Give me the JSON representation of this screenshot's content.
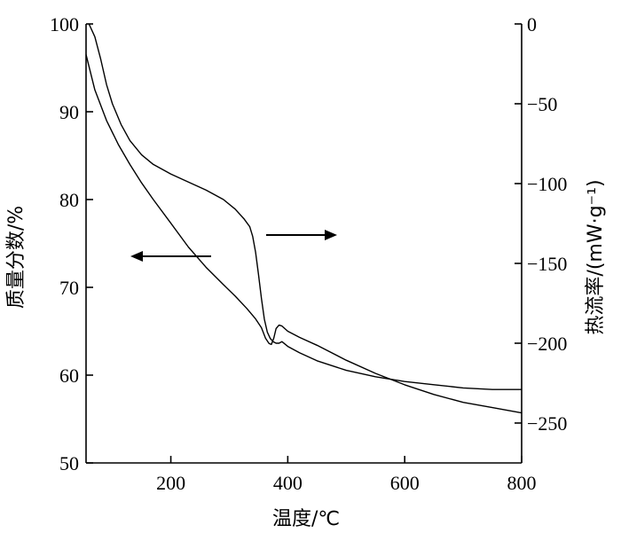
{
  "chart_data": {
    "type": "line",
    "xlabel": "温度/℃",
    "ylabel_left": "质量分数/%",
    "ylabel_right": "热流率/(mW·g⁻¹)",
    "xlim": [
      55,
      800
    ],
    "ylim_left": [
      50,
      100
    ],
    "ylim_right": [
      -275,
      0
    ],
    "x_ticks": [
      200,
      400,
      600,
      800
    ],
    "y_left_ticks": [
      50,
      60,
      70,
      80,
      90,
      100
    ],
    "y_right_ticks": [
      0,
      -50,
      -100,
      -150,
      -200,
      -250
    ],
    "grid": false,
    "legend": "none",
    "series": [
      {
        "axis": "left",
        "x": [
          55,
          70,
          90,
          110,
          130,
          150,
          170,
          200,
          230,
          260,
          290,
          310,
          330,
          345,
          355,
          362,
          368,
          372,
          376,
          380,
          385,
          390,
          400,
          420,
          450,
          500,
          550,
          600,
          650,
          700,
          750,
          800
        ],
        "y": [
          96.5,
          92.5,
          89.0,
          86.3,
          84.0,
          81.9,
          80.0,
          77.3,
          74.6,
          72.3,
          70.3,
          69.0,
          67.6,
          66.4,
          65.4,
          64.2,
          63.6,
          63.5,
          64.2,
          65.3,
          65.7,
          65.6,
          65.0,
          64.3,
          63.4,
          61.7,
          60.2,
          58.9,
          57.8,
          56.9,
          56.3,
          55.7
        ]
      },
      {
        "axis": "right",
        "x": [
          60,
          70,
          80,
          90,
          100,
          115,
          130,
          150,
          170,
          200,
          230,
          260,
          290,
          310,
          325,
          335,
          340,
          345,
          350,
          355,
          360,
          365,
          370,
          375,
          380,
          385,
          390,
          400,
          420,
          450,
          500,
          550,
          600,
          650,
          700,
          750,
          800
        ],
        "y": [
          0,
          -8,
          -22,
          -38,
          -50,
          -63,
          -73,
          -82,
          -88,
          -94,
          -99,
          -104,
          -110,
          -116,
          -122,
          -127,
          -133,
          -143,
          -157,
          -172,
          -185,
          -193,
          -197,
          -199,
          -200,
          -200,
          -199,
          -202,
          -206,
          -211,
          -217,
          -221,
          -224,
          -226,
          -228,
          -229,
          -229
        ]
      }
    ]
  }
}
